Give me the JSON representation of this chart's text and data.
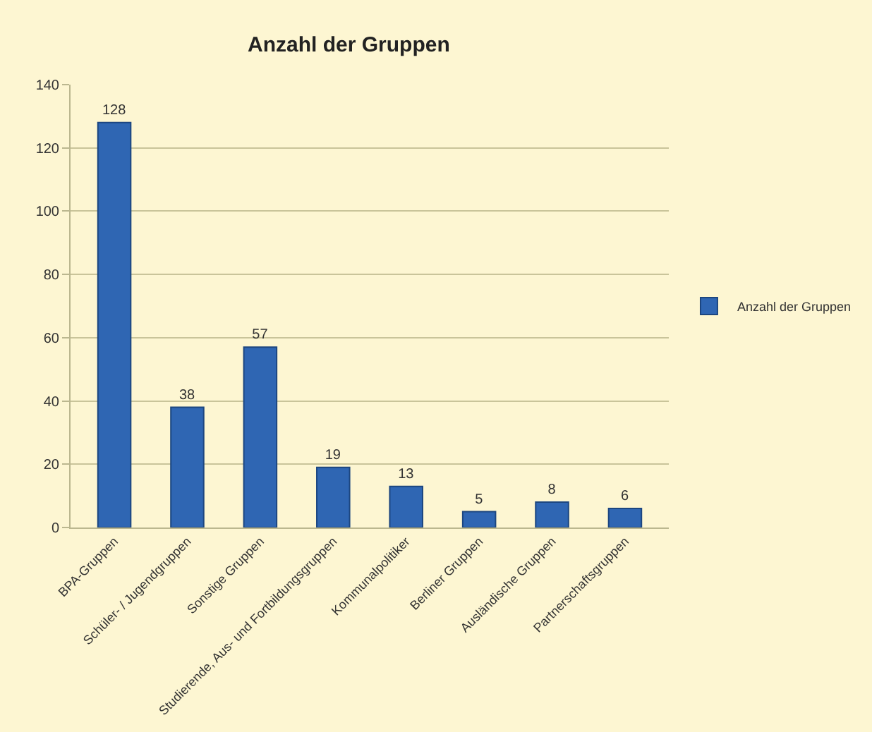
{
  "chart_data": {
    "type": "bar",
    "title": "Anzahl der Gruppen",
    "categories": [
      "BPA-Gruppen",
      "Schüler- / Jugendgruppen",
      "Sonstige Gruppen",
      "Studierende, Aus- und Fortbildungsgruppen",
      "Kommunalpolitiker",
      "Berliner Gruppen",
      "Ausländische Gruppen",
      "Partnerschaftsgruppen"
    ],
    "series": [
      {
        "name": "Anzahl der Gruppen",
        "color": "#2f66b3",
        "values": [
          128,
          38,
          57,
          19,
          13,
          5,
          8,
          6
        ]
      }
    ],
    "ylim": [
      0,
      140
    ],
    "yticks": [
      0,
      20,
      40,
      60,
      80,
      100,
      120,
      140
    ],
    "grid": "y",
    "legend": "right",
    "data_labels": true
  }
}
